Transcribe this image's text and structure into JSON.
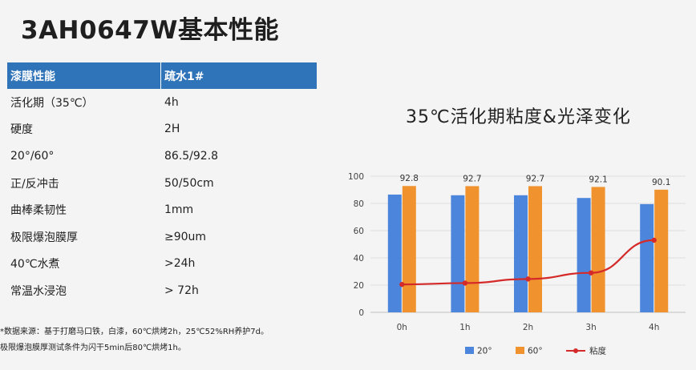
{
  "title": "3AH0647W基本性能",
  "table": {
    "header": [
      "漆膜性能",
      "疏水1#"
    ],
    "rows": [
      [
        "活化期（35℃）",
        "4h"
      ],
      [
        "硬度",
        "2H"
      ],
      [
        "20°/60°",
        "86.5/92.8"
      ],
      [
        "正/反冲击",
        "50/50cm"
      ],
      [
        "曲棒柔韧性",
        "1mm"
      ],
      [
        "极限爆泡膜厚",
        "≥90um"
      ],
      [
        "40℃水煮",
        ">24h"
      ],
      [
        "常温水浸泡",
        "> 72h"
      ]
    ]
  },
  "note": {
    "line1": "*数据来源：基于打磨马口铁，白漆，60℃烘烤2h，25℃52%RH养护7d。",
    "line2": "极限爆泡膜厚测试条件为闪干5min后80℃烘烤1h。"
  },
  "chart_data": {
    "type": "bar",
    "title": "35℃活化期粘度&光泽变化",
    "categories": [
      "0h",
      "1h",
      "2h",
      "3h",
      "4h"
    ],
    "ylim": [
      0,
      100
    ],
    "yticks": [
      0,
      20,
      40,
      60,
      80,
      100
    ],
    "series": [
      {
        "name": "20°",
        "type": "bar",
        "color": "#4b86dc",
        "values": [
          86.5,
          86,
          86,
          84,
          79.5
        ]
      },
      {
        "name": "60°",
        "type": "bar",
        "color": "#f0932e",
        "values": [
          92.8,
          92.7,
          92.7,
          92.1,
          90.1
        ],
        "labels": [
          "92.8",
          "92.7",
          "92.7",
          "92.1",
          "90.1"
        ]
      },
      {
        "name": "粘度",
        "type": "line",
        "color": "#d42a2a",
        "values": [
          20.5,
          21.5,
          24.5,
          29,
          53
        ]
      }
    ],
    "legend_position": "bottom",
    "grid": "horizontal"
  }
}
